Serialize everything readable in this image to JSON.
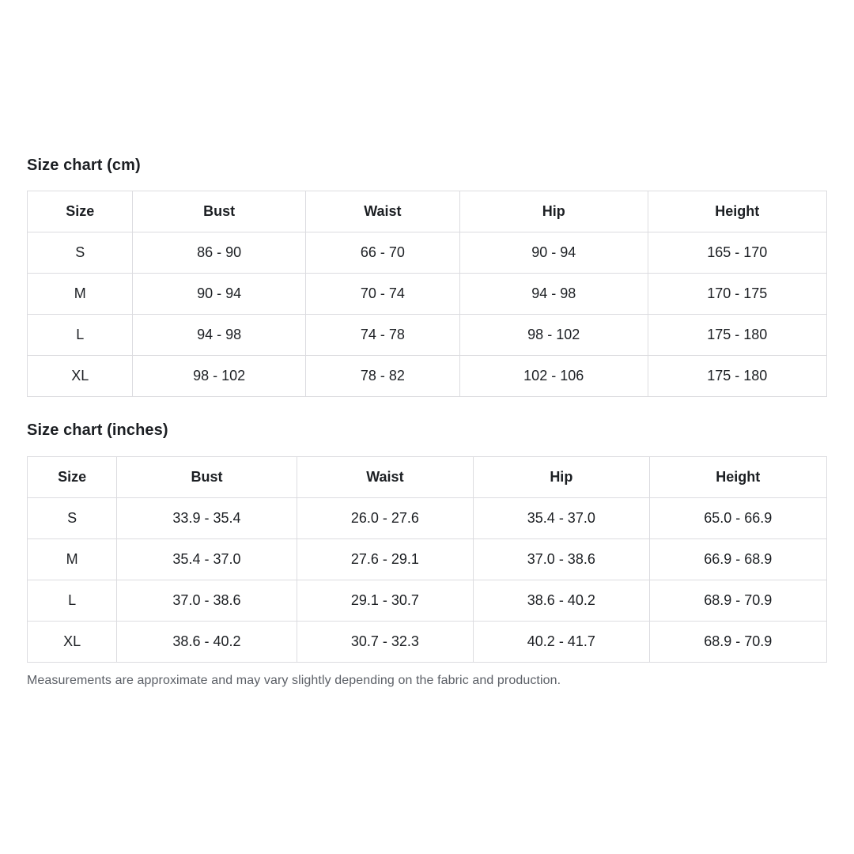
{
  "page": {
    "background": "#ffffff",
    "text_color": "#1c1f23",
    "border_color": "#dcdce0",
    "note_color": "#5b5f66"
  },
  "tables": [
    {
      "title": "Size chart (cm)",
      "columns": [
        "Size",
        "Bust",
        "Waist",
        "Hip",
        "Height"
      ],
      "rows": [
        [
          "S",
          "86 - 90",
          "66 - 70",
          "90 - 94",
          "165 - 170"
        ],
        [
          "M",
          "90 - 94",
          "70 - 74",
          "94 - 98",
          "170 - 175"
        ],
        [
          "L",
          "94 - 98",
          "74 - 78",
          "98 - 102",
          "175 - 180"
        ],
        [
          "XL",
          "98 - 102",
          "78 - 82",
          "102 - 106",
          "175 - 180"
        ]
      ]
    },
    {
      "title": "Size chart (inches)",
      "columns": [
        "Size",
        "Bust",
        "Waist",
        "Hip",
        "Height"
      ],
      "rows": [
        [
          "S",
          "33.9 - 35.4",
          "26.0 - 27.6",
          "35.4 - 37.0",
          "65.0 - 66.9"
        ],
        [
          "M",
          "35.4 - 37.0",
          "27.6 - 29.1",
          "37.0 - 38.6",
          "66.9 - 68.9"
        ],
        [
          "L",
          "37.0 - 38.6",
          "29.1 - 30.7",
          "38.6 - 40.2",
          "68.9 - 70.9"
        ],
        [
          "XL",
          "38.6 - 40.2",
          "30.7 - 32.3",
          "40.2 - 41.7",
          "68.9 - 70.9"
        ]
      ]
    }
  ],
  "note": "Measurements are approximate and may vary slightly depending on the fabric and production."
}
